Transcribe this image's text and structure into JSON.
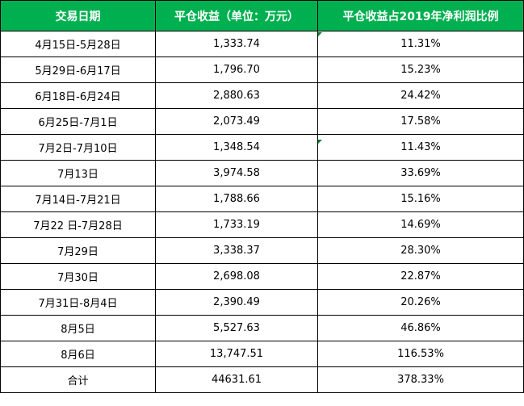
{
  "colors": {
    "header_bg": "#00b050",
    "header_text": "#ffffff",
    "grid": "#000000",
    "comment_marker": "#0b7a2a"
  },
  "table": {
    "headers": [
      "交易日期",
      "平仓收益（单位：万元）",
      "平仓收益占2019年净利润比例"
    ],
    "rows": [
      [
        "4月15日-5月28日",
        "1,333.74",
        "11.31%"
      ],
      [
        "5月29日-6月17日",
        "1,796.70",
        "15.23%"
      ],
      [
        "6月18日-6月24日",
        "2,880.63",
        "24.42%"
      ],
      [
        "6月25日-7月1日",
        "2,073.49",
        "17.58%"
      ],
      [
        "7月2日-7月10日",
        "1,348.54",
        "11.43%"
      ],
      [
        "7月13日",
        "3,974.58",
        "33.69%"
      ],
      [
        "7月14日-7月21日",
        "1,788.66",
        "15.16%"
      ],
      [
        "7月22 日-7月28日",
        "1,733.19",
        "14.69%"
      ],
      [
        "7月29日",
        "3,338.37",
        "28.30%"
      ],
      [
        "7月30日",
        "2,698.08",
        "22.87%"
      ],
      [
        "7月31日-8月4日",
        "2,390.49",
        "20.26%"
      ],
      [
        "8月5日",
        "5,527.63",
        "46.86%"
      ],
      [
        "8月6日",
        "13,747.51",
        "116.53%"
      ],
      [
        "合计",
        "44631.61",
        "378.33%"
      ]
    ]
  }
}
